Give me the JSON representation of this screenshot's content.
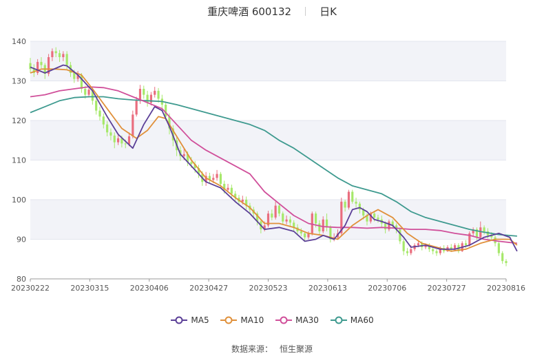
{
  "title": {
    "name": "重庆啤酒 600132",
    "period": "日K"
  },
  "source_label": "数据来源：",
  "source_value": "恒生聚源",
  "colors": {
    "up": "#e96d7e",
    "down": "#a6e86a",
    "ma5": "#5b3f97",
    "ma10": "#e0903a",
    "ma30": "#d04f9a",
    "ma60": "#3e9a8f",
    "band": "#f2f3f8",
    "grid": "#e3e5ee"
  },
  "chart_data": {
    "type": "candlestick",
    "ylim": [
      80,
      140
    ],
    "yticks": [
      80,
      90,
      100,
      110,
      120,
      130,
      140
    ],
    "xtick_labels": [
      "20230222",
      "20230315",
      "20230406",
      "20230427",
      "20230523",
      "20230613",
      "20230706",
      "20230727",
      "20230816"
    ],
    "series_names": [
      "MA5",
      "MA10",
      "MA30",
      "MA60"
    ],
    "candles": [
      [
        134.5,
        133.0,
        135.8,
        132.0
      ],
      [
        133.0,
        132.0,
        134.2,
        131.0
      ],
      [
        132.0,
        134.8,
        135.5,
        131.5
      ],
      [
        134.8,
        134.0,
        136.0,
        133.2
      ],
      [
        134.0,
        131.8,
        134.5,
        130.5
      ],
      [
        131.8,
        136.0,
        136.8,
        131.2
      ],
      [
        136.0,
        137.5,
        138.2,
        135.0
      ],
      [
        137.5,
        137.0,
        138.5,
        136.0
      ],
      [
        137.0,
        136.0,
        137.8,
        134.8
      ],
      [
        136.0,
        136.8,
        137.5,
        135.0
      ],
      [
        136.8,
        134.0,
        137.5,
        133.0
      ],
      [
        134.0,
        132.0,
        134.8,
        131.0
      ],
      [
        132.0,
        130.5,
        132.8,
        129.5
      ],
      [
        130.5,
        131.5,
        132.5,
        129.8
      ],
      [
        131.5,
        128.0,
        132.0,
        127.0
      ],
      [
        128.0,
        126.5,
        128.8,
        125.5
      ],
      [
        126.5,
        127.8,
        128.5,
        125.8
      ],
      [
        127.8,
        125.0,
        128.2,
        124.0
      ],
      [
        125.0,
        122.5,
        125.5,
        121.5
      ],
      [
        122.5,
        121.0,
        123.5,
        120.0
      ],
      [
        121.0,
        119.0,
        121.8,
        118.0
      ],
      [
        119.0,
        117.0,
        119.8,
        116.0
      ],
      [
        117.0,
        116.2,
        118.0,
        115.0
      ],
      [
        116.2,
        114.5,
        117.0,
        113.0
      ],
      [
        114.5,
        115.5,
        116.8,
        113.8
      ],
      [
        115.5,
        114.2,
        116.2,
        113.2
      ],
      [
        114.2,
        114.0,
        115.2,
        113.0
      ],
      [
        114.0,
        116.0,
        117.0,
        113.5
      ],
      [
        116.0,
        121.5,
        122.5,
        115.5
      ],
      [
        121.5,
        125.0,
        126.0,
        121.0
      ],
      [
        125.0,
        128.0,
        129.0,
        124.2
      ],
      [
        128.0,
        126.5,
        128.8,
        125.5
      ],
      [
        126.5,
        124.5,
        127.5,
        123.5
      ],
      [
        124.5,
        126.5,
        127.2,
        123.8
      ],
      [
        126.5,
        127.5,
        128.5,
        125.8
      ],
      [
        127.5,
        125.5,
        128.2,
        124.5
      ],
      [
        125.5,
        124.0,
        126.5,
        122.5
      ],
      [
        124.0,
        121.0,
        124.8,
        120.0
      ],
      [
        121.0,
        118.0,
        121.8,
        116.5
      ],
      [
        118.0,
        115.0,
        118.8,
        113.5
      ],
      [
        115.0,
        112.5,
        115.8,
        111.0
      ],
      [
        112.5,
        111.0,
        113.5,
        109.8
      ],
      [
        111.0,
        111.5,
        113.0,
        110.0
      ],
      [
        111.5,
        109.5,
        112.2,
        108.5
      ],
      [
        109.5,
        109.0,
        110.8,
        108.0
      ],
      [
        109.0,
        108.0,
        109.8,
        106.8
      ],
      [
        108.0,
        106.5,
        108.8,
        105.5
      ],
      [
        106.5,
        104.5,
        107.2,
        103.5
      ],
      [
        104.5,
        106.0,
        107.0,
        103.5
      ],
      [
        106.0,
        105.0,
        106.8,
        104.0
      ],
      [
        105.0,
        105.5,
        106.5,
        104.2
      ],
      [
        105.5,
        106.5,
        107.5,
        104.8
      ],
      [
        106.5,
        104.0,
        107.0,
        103.0
      ],
      [
        104.0,
        102.5,
        104.8,
        101.5
      ],
      [
        102.5,
        103.0,
        104.0,
        101.8
      ],
      [
        103.0,
        101.5,
        103.8,
        100.5
      ],
      [
        101.5,
        100.5,
        102.2,
        99.5
      ],
      [
        100.5,
        99.5,
        101.2,
        98.5
      ],
      [
        99.5,
        100.0,
        101.0,
        98.8
      ],
      [
        100.0,
        98.5,
        100.8,
        97.5
      ],
      [
        98.5,
        97.5,
        99.2,
        96.5
      ],
      [
        97.5,
        96.5,
        98.2,
        95.5
      ],
      [
        96.5,
        94.5,
        97.0,
        93.5
      ],
      [
        94.5,
        92.5,
        95.0,
        91.5
      ],
      [
        92.5,
        93.5,
        94.5,
        92.0
      ],
      [
        93.5,
        96.5,
        97.2,
        93.0
      ],
      [
        96.5,
        95.5,
        97.5,
        94.8
      ],
      [
        95.5,
        98.5,
        99.5,
        95.0
      ],
      [
        98.5,
        96.5,
        99.0,
        95.8
      ],
      [
        96.5,
        94.5,
        97.0,
        93.8
      ],
      [
        94.5,
        95.0,
        96.0,
        93.8
      ],
      [
        95.0,
        94.2,
        95.8,
        93.2
      ],
      [
        94.2,
        93.0,
        94.8,
        92.0
      ],
      [
        93.0,
        92.0,
        93.8,
        91.0
      ],
      [
        92.0,
        91.5,
        92.8,
        90.8
      ],
      [
        91.5,
        90.5,
        92.0,
        89.5
      ],
      [
        90.5,
        91.5,
        92.0,
        90.0
      ],
      [
        91.5,
        96.5,
        97.0,
        91.0
      ],
      [
        96.5,
        94.0,
        97.0,
        93.0
      ],
      [
        94.0,
        92.0,
        94.8,
        91.2
      ],
      [
        92.0,
        95.0,
        95.8,
        91.5
      ],
      [
        95.0,
        93.0,
        96.5,
        92.0
      ],
      [
        93.0,
        90.0,
        93.5,
        89.2
      ],
      [
        90.0,
        90.5,
        91.5,
        89.5
      ],
      [
        90.5,
        91.5,
        92.5,
        90.0
      ],
      [
        91.5,
        99.5,
        100.5,
        91.0
      ],
      [
        99.5,
        98.0,
        100.0,
        97.0
      ],
      [
        98.0,
        102.0,
        102.5,
        97.5
      ],
      [
        102.0,
        99.5,
        102.5,
        99.0
      ],
      [
        99.5,
        99.0,
        100.5,
        98.0
      ],
      [
        99.0,
        97.5,
        99.5,
        96.5
      ],
      [
        97.5,
        96.0,
        98.0,
        95.0
      ],
      [
        96.0,
        94.5,
        96.5,
        93.5
      ],
      [
        94.5,
        96.5,
        97.0,
        94.0
      ],
      [
        96.5,
        95.5,
        97.0,
        94.5
      ],
      [
        95.5,
        95.0,
        96.2,
        94.2
      ],
      [
        95.0,
        94.0,
        96.0,
        93.0
      ],
      [
        94.0,
        92.5,
        94.5,
        91.5
      ],
      [
        92.5,
        94.5,
        95.0,
        92.0
      ],
      [
        94.5,
        93.5,
        95.0,
        92.8
      ],
      [
        93.5,
        92.5,
        94.0,
        91.5
      ],
      [
        92.5,
        89.5,
        93.0,
        88.8
      ],
      [
        89.5,
        87.0,
        90.0,
        86.0
      ],
      [
        87.0,
        86.5,
        87.8,
        85.8
      ],
      [
        86.5,
        87.5,
        88.5,
        86.0
      ],
      [
        87.5,
        88.5,
        89.0,
        87.0
      ],
      [
        88.5,
        89.0,
        89.8,
        88.0
      ],
      [
        89.0,
        88.0,
        89.5,
        87.2
      ],
      [
        88.0,
        88.5,
        89.0,
        87.5
      ],
      [
        88.5,
        87.5,
        89.0,
        86.8
      ],
      [
        87.5,
        87.0,
        88.0,
        86.2
      ],
      [
        87.0,
        86.5,
        87.5,
        85.8
      ],
      [
        86.5,
        87.8,
        88.2,
        86.0
      ],
      [
        87.8,
        87.0,
        88.5,
        86.5
      ],
      [
        87.0,
        88.0,
        88.5,
        86.8
      ],
      [
        88.0,
        87.5,
        88.8,
        86.8
      ],
      [
        87.5,
        88.5,
        89.0,
        87.0
      ],
      [
        88.5,
        87.0,
        89.0,
        86.5
      ],
      [
        87.0,
        89.0,
        89.5,
        86.8
      ],
      [
        89.0,
        88.5,
        89.8,
        87.8
      ],
      [
        88.5,
        91.5,
        92.0,
        88.2
      ],
      [
        91.5,
        92.5,
        93.0,
        90.8
      ],
      [
        92.5,
        90.5,
        93.0,
        89.8
      ],
      [
        90.5,
        93.0,
        94.5,
        90.0
      ],
      [
        93.0,
        92.0,
        93.5,
        91.2
      ],
      [
        92.0,
        91.0,
        92.8,
        90.2
      ],
      [
        91.0,
        90.5,
        91.8,
        89.8
      ],
      [
        90.5,
        89.0,
        91.0,
        88.2
      ],
      [
        89.0,
        86.5,
        89.5,
        85.8
      ],
      [
        86.5,
        84.5,
        87.0,
        83.8
      ],
      [
        84.5,
        84.0,
        85.0,
        83.2
      ]
    ],
    "ma5": [
      [
        0,
        133.5
      ],
      [
        4,
        132.0
      ],
      [
        9,
        134.0
      ],
      [
        10,
        133.8
      ],
      [
        13,
        131.5
      ],
      [
        17,
        127.5
      ],
      [
        21,
        121.0
      ],
      [
        24,
        116.5
      ],
      [
        28,
        113.0
      ],
      [
        31,
        119.0
      ],
      [
        34,
        123.5
      ],
      [
        36,
        122.5
      ],
      [
        38,
        118.5
      ],
      [
        41,
        111.5
      ],
      [
        44,
        108.5
      ],
      [
        48,
        104.5
      ],
      [
        52,
        103.0
      ],
      [
        56,
        99.5
      ],
      [
        60,
        96.5
      ],
      [
        63,
        93.5
      ],
      [
        64,
        92.5
      ],
      [
        68,
        93.0
      ],
      [
        72,
        92.0
      ],
      [
        75,
        89.5
      ],
      [
        78,
        90.0
      ],
      [
        80,
        91.0
      ],
      [
        83,
        90.0
      ],
      [
        86,
        93.5
      ],
      [
        88,
        97.5
      ],
      [
        90,
        98.0
      ],
      [
        92,
        97.0
      ],
      [
        94,
        95.0
      ],
      [
        96,
        94.5
      ],
      [
        99,
        93.5
      ],
      [
        102,
        90.5
      ],
      [
        104,
        88.0
      ],
      [
        108,
        88.5
      ],
      [
        112,
        87.5
      ],
      [
        116,
        87.5
      ],
      [
        120,
        88.5
      ],
      [
        124,
        90.5
      ],
      [
        128,
        91.5
      ],
      [
        131,
        90.5
      ],
      [
        133,
        87.0
      ]
    ],
    "ma10": [
      [
        0,
        132.0
      ],
      [
        3,
        133.0
      ],
      [
        7,
        133.0
      ],
      [
        10,
        132.8
      ],
      [
        14,
        131.5
      ],
      [
        17,
        128.0
      ],
      [
        21,
        123.0
      ],
      [
        25,
        118.0
      ],
      [
        29,
        115.5
      ],
      [
        32,
        117.5
      ],
      [
        35,
        121.0
      ],
      [
        37,
        120.5
      ],
      [
        40,
        116.0
      ],
      [
        44,
        110.0
      ],
      [
        48,
        105.5
      ],
      [
        52,
        103.5
      ],
      [
        56,
        100.5
      ],
      [
        60,
        98.0
      ],
      [
        64,
        94.0
      ],
      [
        68,
        94.0
      ],
      [
        72,
        93.0
      ],
      [
        76,
        91.5
      ],
      [
        80,
        91.0
      ],
      [
        84,
        90.0
      ],
      [
        88,
        93.5
      ],
      [
        92,
        96.0
      ],
      [
        95,
        97.5
      ],
      [
        99,
        95.5
      ],
      [
        103,
        91.5
      ],
      [
        107,
        89.0
      ],
      [
        111,
        88.0
      ],
      [
        115,
        87.0
      ],
      [
        119,
        87.5
      ],
      [
        123,
        89.0
      ],
      [
        127,
        90.0
      ],
      [
        131,
        90.0
      ],
      [
        133,
        88.5
      ]
    ],
    "ma30": [
      [
        0,
        126.0
      ],
      [
        4,
        126.5
      ],
      [
        8,
        127.5
      ],
      [
        12,
        128.0
      ],
      [
        16,
        128.5
      ],
      [
        20,
        128.3
      ],
      [
        24,
        127.5
      ],
      [
        28,
        126.0
      ],
      [
        32,
        124.5
      ],
      [
        36,
        123.0
      ],
      [
        40,
        119.0
      ],
      [
        44,
        115.0
      ],
      [
        48,
        112.5
      ],
      [
        52,
        110.5
      ],
      [
        56,
        108.5
      ],
      [
        60,
        106.5
      ],
      [
        64,
        102.0
      ],
      [
        68,
        99.0
      ],
      [
        72,
        96.0
      ],
      [
        76,
        94.0
      ],
      [
        80,
        93.2
      ],
      [
        84,
        93.0
      ],
      [
        88,
        93.0
      ],
      [
        92,
        92.8
      ],
      [
        96,
        93.0
      ],
      [
        100,
        92.8
      ],
      [
        104,
        92.5
      ],
      [
        108,
        92.5
      ],
      [
        112,
        92.2
      ],
      [
        116,
        91.5
      ],
      [
        120,
        91.0
      ],
      [
        124,
        90.0
      ],
      [
        128,
        89.5
      ],
      [
        133,
        89.0
      ]
    ],
    "ma60": [
      [
        0,
        122.0
      ],
      [
        4,
        123.5
      ],
      [
        8,
        125.0
      ],
      [
        12,
        125.8
      ],
      [
        16,
        126.0
      ],
      [
        20,
        126.0
      ],
      [
        24,
        125.5
      ],
      [
        28,
        125.2
      ],
      [
        32,
        125.0
      ],
      [
        36,
        124.8
      ],
      [
        40,
        124.0
      ],
      [
        44,
        123.0
      ],
      [
        48,
        122.0
      ],
      [
        52,
        121.0
      ],
      [
        56,
        120.0
      ],
      [
        60,
        119.0
      ],
      [
        64,
        117.5
      ],
      [
        68,
        115.0
      ],
      [
        72,
        113.0
      ],
      [
        76,
        110.5
      ],
      [
        80,
        108.0
      ],
      [
        84,
        105.5
      ],
      [
        88,
        103.5
      ],
      [
        92,
        102.5
      ],
      [
        96,
        101.5
      ],
      [
        100,
        99.5
      ],
      [
        104,
        97.0
      ],
      [
        108,
        95.5
      ],
      [
        112,
        94.5
      ],
      [
        116,
        93.5
      ],
      [
        120,
        92.5
      ],
      [
        124,
        91.8
      ],
      [
        128,
        91.2
      ],
      [
        133,
        90.8
      ]
    ]
  }
}
